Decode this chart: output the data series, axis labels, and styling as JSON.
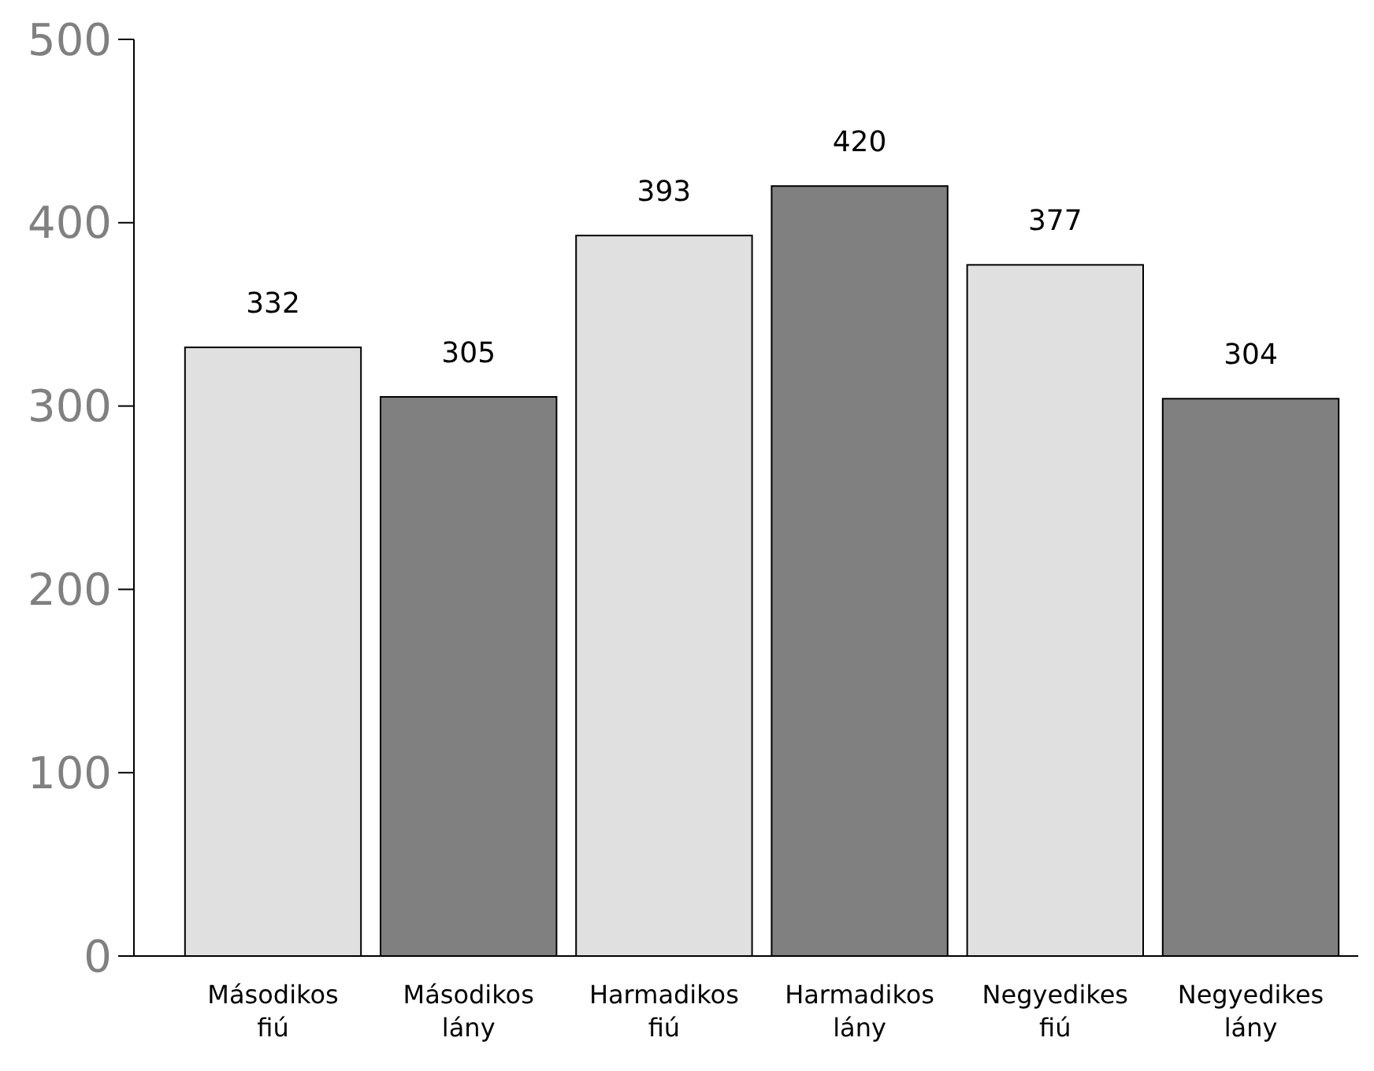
{
  "chart_data": {
    "type": "bar",
    "categories": [
      "Másodikos fiú",
      "Másodikos lány",
      "Harmadikos fiú",
      "Harmadikos lány",
      "Negyedikes fiú",
      "Negyedikes lány"
    ],
    "values": [
      332,
      305,
      393,
      420,
      377,
      304
    ],
    "colors": [
      "#e0e0e0",
      "#808080",
      "#e0e0e0",
      "#808080",
      "#e0e0e0",
      "#808080"
    ],
    "ylim": [
      0,
      500
    ],
    "yticks": [
      0,
      100,
      200,
      300,
      400,
      500
    ],
    "data_labels": true,
    "grid": false
  }
}
